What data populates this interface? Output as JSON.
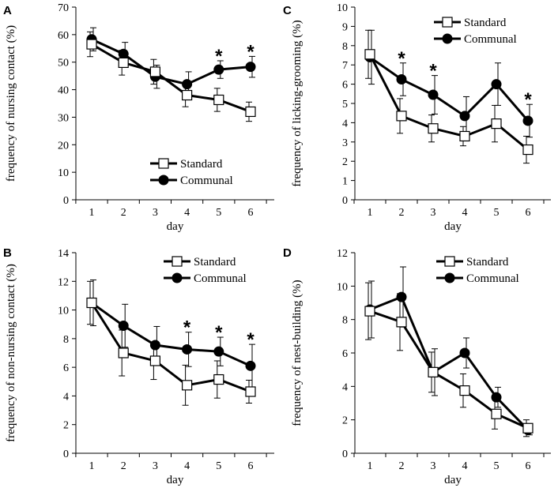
{
  "chart_data": [
    {
      "type": "line",
      "panel": "A",
      "x": [
        1,
        2,
        3,
        4,
        5,
        6
      ],
      "xticks": [
        "1",
        "2",
        "3",
        "4",
        "5",
        "6"
      ],
      "xlabel": "day",
      "ylabel": "frequency of nursing contact (%)",
      "ylim": [
        0,
        70
      ],
      "yticks": [
        "0",
        "10",
        "20",
        "30",
        "40",
        "50",
        "60",
        "70"
      ],
      "legend": "lower-center",
      "series": [
        {
          "name": "Standard",
          "marker": "open-square",
          "values": [
            56.5,
            49.8,
            46.5,
            38,
            36.3,
            32
          ],
          "errors": [
            4.5,
            4.5,
            4.5,
            4.2,
            4.2,
            3.5
          ]
        },
        {
          "name": "Communal",
          "marker": "filled-circle",
          "values": [
            58.3,
            53,
            44.7,
            42,
            47.3,
            48.3
          ],
          "errors": [
            4.2,
            4.2,
            4.2,
            4.5,
            3.2,
            3.8
          ]
        }
      ],
      "significance": [
        "",
        "",
        "",
        "",
        "*",
        "*"
      ]
    },
    {
      "type": "line",
      "panel": "C",
      "x": [
        1,
        2,
        3,
        4,
        5,
        6
      ],
      "xticks": [
        "1",
        "2",
        "3",
        "4",
        "5",
        "6"
      ],
      "xlabel": "day",
      "ylabel": "frequency of licking-grooming (%)",
      "ylim": [
        0,
        10
      ],
      "yticks": [
        "0",
        "1",
        "2",
        "3",
        "4",
        "5",
        "6",
        "7",
        "8",
        "9",
        "10"
      ],
      "legend": "top-right",
      "series": [
        {
          "name": "Standard",
          "marker": "open-square",
          "values": [
            7.55,
            4.35,
            3.7,
            3.3,
            3.95,
            2.6
          ],
          "errors": [
            1.25,
            0.9,
            0.7,
            0.5,
            0.95,
            0.7
          ]
        },
        {
          "name": "Communal",
          "marker": "filled-circle",
          "values": [
            7.4,
            6.25,
            5.45,
            4.35,
            6,
            4.1
          ],
          "errors": [
            1.4,
            0.85,
            1.0,
            1.0,
            1.1,
            0.85
          ]
        }
      ],
      "significance": [
        "",
        "*",
        "*",
        "",
        "",
        "*"
      ]
    },
    {
      "type": "line",
      "panel": "B",
      "x": [
        1,
        2,
        3,
        4,
        5,
        6
      ],
      "xticks": [
        "1",
        "2",
        "3",
        "4",
        "5",
        "6"
      ],
      "xlabel": "day",
      "ylabel": "frequency of non-nursing contact (%)",
      "ylim": [
        0,
        14
      ],
      "yticks": [
        "0",
        "2",
        "4",
        "6",
        "8",
        "10",
        "12",
        "14"
      ],
      "legend": "top-right",
      "series": [
        {
          "name": "Standard",
          "marker": "open-square",
          "values": [
            10.5,
            7,
            6.45,
            4.75,
            5.15,
            4.3
          ],
          "errors": [
            1.5,
            1.6,
            1.3,
            1.4,
            1.3,
            0.8
          ]
        },
        {
          "name": "Communal",
          "marker": "filled-circle",
          "values": [
            10.5,
            8.9,
            7.55,
            7.25,
            7.1,
            6.1
          ],
          "errors": [
            1.6,
            1.5,
            1.3,
            1.2,
            1.0,
            1.5
          ]
        }
      ],
      "significance": [
        "",
        "",
        "",
        "*",
        "*",
        "*"
      ]
    },
    {
      "type": "line",
      "panel": "D",
      "x": [
        1,
        2,
        3,
        4,
        5,
        6
      ],
      "xticks": [
        "1",
        "2",
        "3",
        "4",
        "5",
        "6"
      ],
      "xlabel": "day",
      "ylabel": "frequency of nest-building (%)",
      "ylim": [
        0,
        12
      ],
      "yticks": [
        "0",
        "2",
        "4",
        "6",
        "8",
        "10",
        "12"
      ],
      "legend": "top-right",
      "series": [
        {
          "name": "Standard",
          "marker": "open-square",
          "values": [
            8.5,
            7.85,
            4.85,
            3.75,
            2.35,
            1.5
          ],
          "errors": [
            1.7,
            1.7,
            1.2,
            1.0,
            0.9,
            0.5
          ]
        },
        {
          "name": "Communal",
          "marker": "filled-circle",
          "values": [
            8.6,
            9.35,
            4.85,
            6,
            3.35,
            1.4
          ],
          "errors": [
            1.7,
            1.8,
            1.4,
            0.9,
            0.6,
            0.3
          ]
        }
      ],
      "significance": [
        "",
        "",
        "",
        "",
        "",
        ""
      ]
    }
  ]
}
